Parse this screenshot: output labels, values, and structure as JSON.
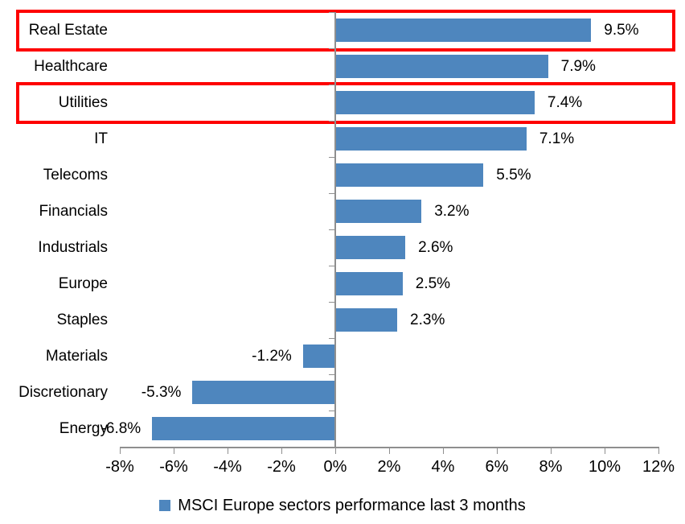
{
  "chart_data": {
    "type": "bar",
    "orientation": "horizontal",
    "categories": [
      "Real Estate",
      "Healthcare",
      "Utilities",
      "IT",
      "Telecoms",
      "Financials",
      "Industrials",
      "Europe",
      "Staples",
      "Materials",
      "Discretionary",
      "Energy"
    ],
    "values": [
      9.5,
      7.9,
      7.4,
      7.1,
      5.5,
      3.2,
      2.6,
      2.5,
      2.3,
      -1.2,
      -5.3,
      -6.8
    ],
    "value_labels": [
      "9.5%",
      "7.9%",
      "7.4%",
      "7.1%",
      "5.5%",
      "3.2%",
      "2.6%",
      "2.5%",
      "2.3%",
      "-1.2%",
      "-5.3%",
      "-6.8%"
    ],
    "x_tick_values": [
      -8,
      -6,
      -4,
      -2,
      0,
      2,
      4,
      6,
      8,
      10,
      12
    ],
    "x_tick_labels": [
      "-8%",
      "-6%",
      "-4%",
      "-2%",
      "0%",
      "2%",
      "4%",
      "6%",
      "8%",
      "10%",
      "12%"
    ],
    "xlim": [
      -8,
      12
    ],
    "grid": "off",
    "legend": {
      "position": "bottom-center",
      "label": "MSCI Europe sectors performance last 3 months",
      "marker_color": "#4E86BE"
    },
    "bar_color": "#4E86BE",
    "axis_color": "#8F8F8F",
    "highlight_color": "#FE0000",
    "highlighted_categories": [
      "Real Estate",
      "Utilities"
    ]
  }
}
